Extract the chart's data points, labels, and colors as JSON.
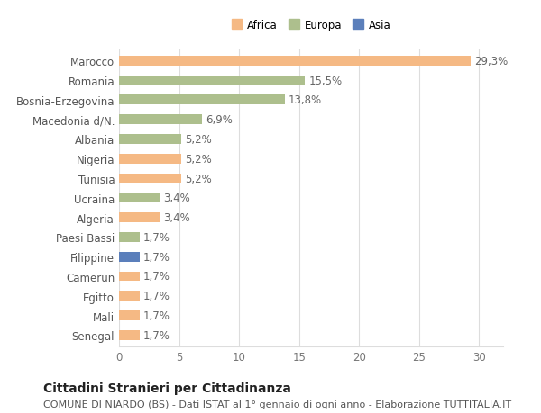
{
  "countries": [
    "Marocco",
    "Romania",
    "Bosnia-Erzegovina",
    "Macedonia d/N.",
    "Albania",
    "Nigeria",
    "Tunisia",
    "Ucraina",
    "Algeria",
    "Paesi Bassi",
    "Filippine",
    "Camerun",
    "Egitto",
    "Mali",
    "Senegal"
  ],
  "values": [
    29.3,
    15.5,
    13.8,
    6.9,
    5.2,
    5.2,
    5.2,
    3.4,
    3.4,
    1.7,
    1.7,
    1.7,
    1.7,
    1.7,
    1.7
  ],
  "labels": [
    "29,3%",
    "15,5%",
    "13,8%",
    "6,9%",
    "5,2%",
    "5,2%",
    "5,2%",
    "3,4%",
    "3,4%",
    "1,7%",
    "1,7%",
    "1,7%",
    "1,7%",
    "1,7%",
    "1,7%"
  ],
  "bar_colors": [
    "#F5B984",
    "#ADBF8D",
    "#ADBF8D",
    "#ADBF8D",
    "#ADBF8D",
    "#F5B984",
    "#F5B984",
    "#ADBF8D",
    "#F5B984",
    "#ADBF8D",
    "#5B7FBB",
    "#F5B984",
    "#F5B984",
    "#F5B984",
    "#F5B984"
  ],
  "legend_labels": [
    "Africa",
    "Europa",
    "Asia"
  ],
  "legend_colors": [
    "#F5B984",
    "#ADBF8D",
    "#5B7FBB"
  ],
  "title": "Cittadini Stranieri per Cittadinanza",
  "subtitle": "COMUNE DI NIARDO (BS) - Dati ISTAT al 1° gennaio di ogni anno - Elaborazione TUTTITALIA.IT",
  "xlim": [
    0,
    32
  ],
  "xticks": [
    0,
    5,
    10,
    15,
    20,
    25,
    30
  ],
  "background_color": "#ffffff",
  "grid_color": "#dddddd",
  "label_fontsize": 8.5,
  "tick_fontsize": 8.5,
  "ytick_fontsize": 8.5,
  "title_fontsize": 10,
  "subtitle_fontsize": 8
}
